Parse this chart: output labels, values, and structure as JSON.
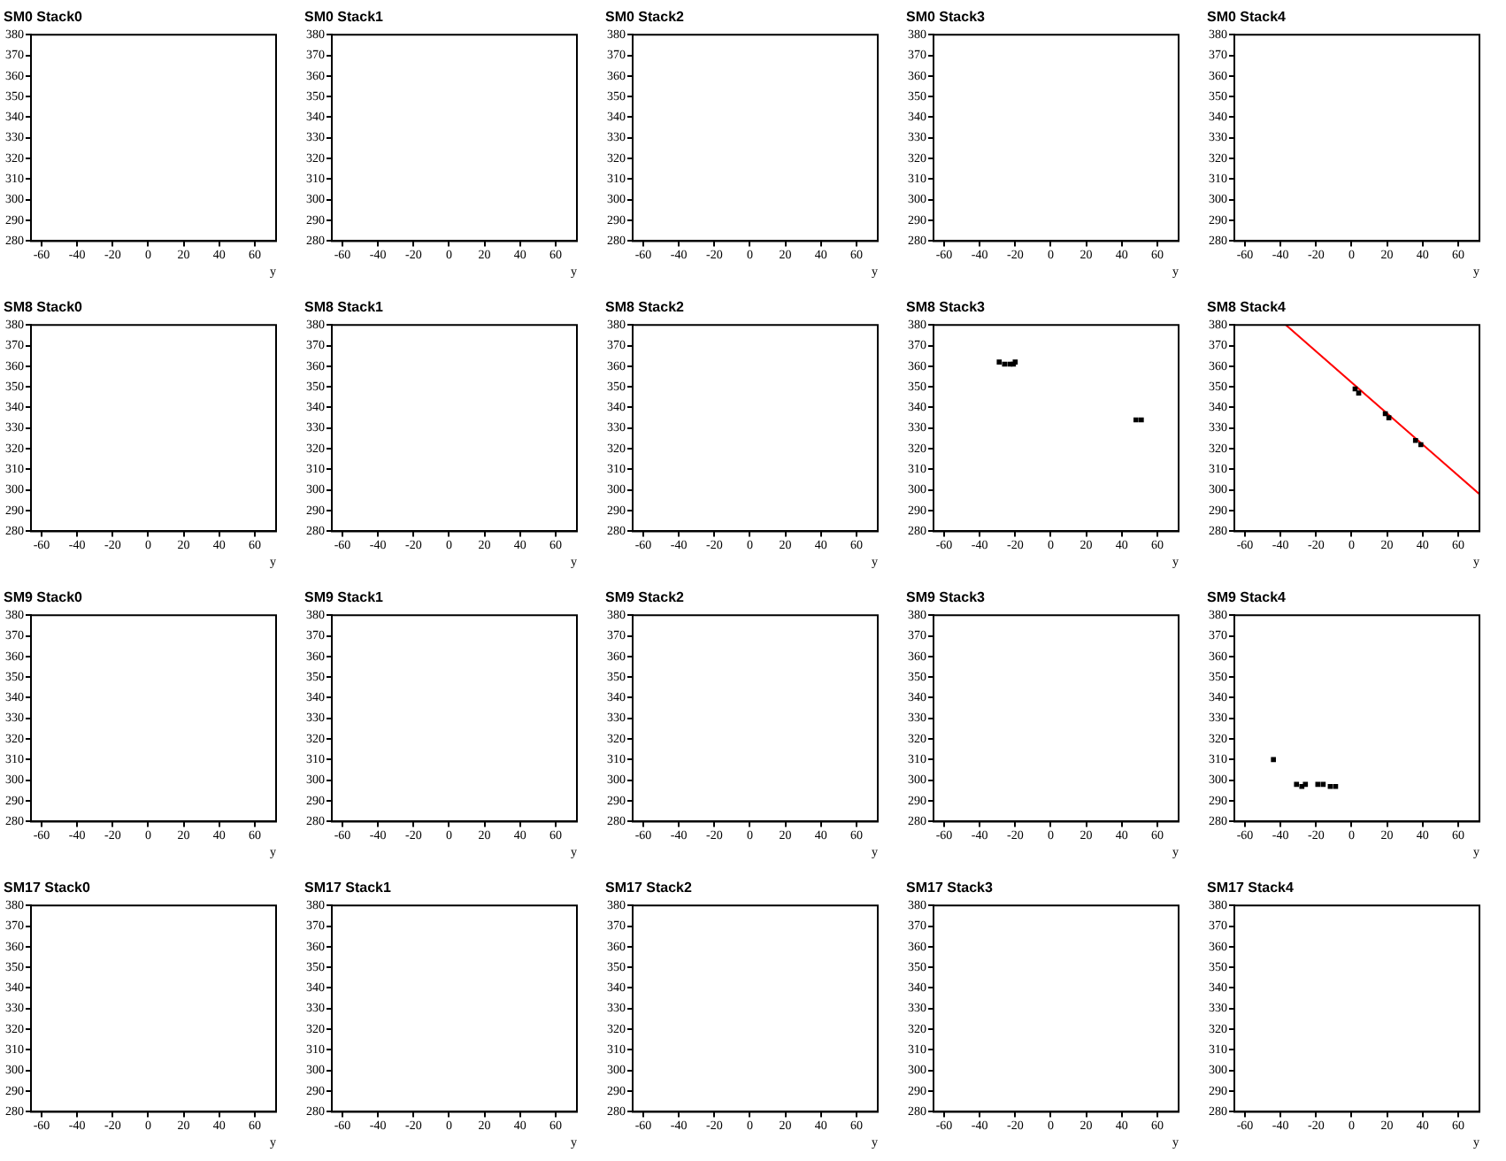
{
  "chart_data": [
    {
      "type": "scatter",
      "title": "SM0 Stack0",
      "xlabel": "y",
      "xlim": [
        -66,
        72
      ],
      "ylim": [
        280,
        380
      ],
      "xticks": [
        -60,
        -40,
        -20,
        0,
        20,
        40,
        60
      ],
      "yticks": [
        280,
        290,
        300,
        310,
        320,
        330,
        340,
        350,
        360,
        370,
        380
      ],
      "grid": false,
      "legend": false
    },
    {
      "type": "scatter",
      "title": "SM0 Stack1",
      "xlabel": "y",
      "xlim": [
        -66,
        72
      ],
      "ylim": [
        280,
        380
      ],
      "xticks": [
        -60,
        -40,
        -20,
        0,
        20,
        40,
        60
      ],
      "yticks": [
        280,
        290,
        300,
        310,
        320,
        330,
        340,
        350,
        360,
        370,
        380
      ],
      "grid": false,
      "legend": false
    },
    {
      "type": "scatter",
      "title": "SM0 Stack2",
      "xlabel": "y",
      "xlim": [
        -66,
        72
      ],
      "ylim": [
        280,
        380
      ],
      "xticks": [
        -60,
        -40,
        -20,
        0,
        20,
        40,
        60
      ],
      "yticks": [
        280,
        290,
        300,
        310,
        320,
        330,
        340,
        350,
        360,
        370,
        380
      ],
      "grid": false,
      "legend": false
    },
    {
      "type": "scatter",
      "title": "SM0 Stack3",
      "xlabel": "y",
      "xlim": [
        -66,
        72
      ],
      "ylim": [
        280,
        380
      ],
      "xticks": [
        -60,
        -40,
        -20,
        0,
        20,
        40,
        60
      ],
      "yticks": [
        280,
        290,
        300,
        310,
        320,
        330,
        340,
        350,
        360,
        370,
        380
      ],
      "grid": false,
      "legend": false
    },
    {
      "type": "scatter",
      "title": "SM0 Stack4",
      "xlabel": "y",
      "xlim": [
        -66,
        72
      ],
      "ylim": [
        280,
        380
      ],
      "xticks": [
        -60,
        -40,
        -20,
        0,
        20,
        40,
        60
      ],
      "yticks": [
        280,
        290,
        300,
        310,
        320,
        330,
        340,
        350,
        360,
        370,
        380
      ],
      "grid": false,
      "legend": false
    },
    {
      "type": "scatter",
      "title": "SM8 Stack0",
      "xlabel": "y",
      "xlim": [
        -66,
        72
      ],
      "ylim": [
        280,
        380
      ],
      "xticks": [
        -60,
        -40,
        -20,
        0,
        20,
        40,
        60
      ],
      "yticks": [
        280,
        290,
        300,
        310,
        320,
        330,
        340,
        350,
        360,
        370,
        380
      ],
      "grid": false,
      "legend": false
    },
    {
      "type": "scatter",
      "title": "SM8 Stack1",
      "xlabel": "y",
      "xlim": [
        -66,
        72
      ],
      "ylim": [
        280,
        380
      ],
      "xticks": [
        -60,
        -40,
        -20,
        0,
        20,
        40,
        60
      ],
      "yticks": [
        280,
        290,
        300,
        310,
        320,
        330,
        340,
        350,
        360,
        370,
        380
      ],
      "grid": false,
      "legend": false
    },
    {
      "type": "scatter",
      "title": "SM8 Stack2",
      "xlabel": "y",
      "xlim": [
        -66,
        72
      ],
      "ylim": [
        280,
        380
      ],
      "xticks": [
        -60,
        -40,
        -20,
        0,
        20,
        40,
        60
      ],
      "yticks": [
        280,
        290,
        300,
        310,
        320,
        330,
        340,
        350,
        360,
        370,
        380
      ],
      "grid": false,
      "legend": false
    },
    {
      "type": "scatter",
      "title": "SM8 Stack3",
      "xlabel": "y",
      "xlim": [
        -66,
        72
      ],
      "ylim": [
        280,
        380
      ],
      "xticks": [
        -60,
        -40,
        -20,
        0,
        20,
        40,
        60
      ],
      "yticks": [
        280,
        290,
        300,
        310,
        320,
        330,
        340,
        350,
        360,
        370,
        380
      ],
      "grid": false,
      "legend": false,
      "marker": "square",
      "series": [
        {
          "color": "#000000",
          "x": [
            -29,
            -26,
            -23,
            -21,
            -20,
            48,
            51
          ],
          "values": [
            362,
            361,
            361,
            361,
            362,
            334,
            334
          ]
        }
      ]
    },
    {
      "type": "scatter",
      "title": "SM8 Stack4",
      "xlabel": "y",
      "xlim": [
        -66,
        72
      ],
      "ylim": [
        280,
        380
      ],
      "xticks": [
        -60,
        -40,
        -20,
        0,
        20,
        40,
        60
      ],
      "yticks": [
        280,
        290,
        300,
        310,
        320,
        330,
        340,
        350,
        360,
        370,
        380
      ],
      "grid": false,
      "legend": false,
      "marker": "square",
      "series": [
        {
          "color": "#000000",
          "x": [
            2,
            4,
            19,
            21,
            36,
            39
          ],
          "values": [
            349,
            347,
            337,
            335,
            324,
            322
          ]
        },
        {
          "type": "line",
          "color": "#ff0000",
          "marker": "none",
          "x": [
            -37,
            72
          ],
          "values": [
            380,
            298
          ]
        }
      ]
    },
    {
      "type": "scatter",
      "title": "SM9 Stack0",
      "xlabel": "y",
      "xlim": [
        -66,
        72
      ],
      "ylim": [
        280,
        380
      ],
      "xticks": [
        -60,
        -40,
        -20,
        0,
        20,
        40,
        60
      ],
      "yticks": [
        280,
        290,
        300,
        310,
        320,
        330,
        340,
        350,
        360,
        370,
        380
      ],
      "grid": false,
      "legend": false
    },
    {
      "type": "scatter",
      "title": "SM9 Stack1",
      "xlabel": "y",
      "xlim": [
        -66,
        72
      ],
      "ylim": [
        280,
        380
      ],
      "xticks": [
        -60,
        -40,
        -20,
        0,
        20,
        40,
        60
      ],
      "yticks": [
        280,
        290,
        300,
        310,
        320,
        330,
        340,
        350,
        360,
        370,
        380
      ],
      "grid": false,
      "legend": false
    },
    {
      "type": "scatter",
      "title": "SM9 Stack2",
      "xlabel": "y",
      "xlim": [
        -66,
        72
      ],
      "ylim": [
        280,
        380
      ],
      "xticks": [
        -60,
        -40,
        -20,
        0,
        20,
        40,
        60
      ],
      "yticks": [
        280,
        290,
        300,
        310,
        320,
        330,
        340,
        350,
        360,
        370,
        380
      ],
      "grid": false,
      "legend": false
    },
    {
      "type": "scatter",
      "title": "SM9 Stack3",
      "xlabel": "y",
      "xlim": [
        -66,
        72
      ],
      "ylim": [
        280,
        380
      ],
      "xticks": [
        -60,
        -40,
        -20,
        0,
        20,
        40,
        60
      ],
      "yticks": [
        280,
        290,
        300,
        310,
        320,
        330,
        340,
        350,
        360,
        370,
        380
      ],
      "grid": false,
      "legend": false
    },
    {
      "type": "scatter",
      "title": "SM9 Stack4",
      "xlabel": "y",
      "xlim": [
        -66,
        72
      ],
      "ylim": [
        280,
        380
      ],
      "xticks": [
        -60,
        -40,
        -20,
        0,
        20,
        40,
        60
      ],
      "yticks": [
        280,
        290,
        300,
        310,
        320,
        330,
        340,
        350,
        360,
        370,
        380
      ],
      "grid": false,
      "legend": false,
      "marker": "square",
      "series": [
        {
          "color": "#000000",
          "x": [
            -44,
            -31,
            -28,
            -26,
            -19,
            -16,
            -12,
            -9
          ],
          "values": [
            310,
            298,
            297,
            298,
            298,
            298,
            297,
            297
          ]
        }
      ]
    },
    {
      "type": "scatter",
      "title": "SM17 Stack0",
      "xlabel": "y",
      "xlim": [
        -66,
        72
      ],
      "ylim": [
        280,
        380
      ],
      "xticks": [
        -60,
        -40,
        -20,
        0,
        20,
        40,
        60
      ],
      "yticks": [
        280,
        290,
        300,
        310,
        320,
        330,
        340,
        350,
        360,
        370,
        380
      ],
      "grid": false,
      "legend": false
    },
    {
      "type": "scatter",
      "title": "SM17 Stack1",
      "xlabel": "y",
      "xlim": [
        -66,
        72
      ],
      "ylim": [
        280,
        380
      ],
      "xticks": [
        -60,
        -40,
        -20,
        0,
        20,
        40,
        60
      ],
      "yticks": [
        280,
        290,
        300,
        310,
        320,
        330,
        340,
        350,
        360,
        370,
        380
      ],
      "grid": false,
      "legend": false
    },
    {
      "type": "scatter",
      "title": "SM17 Stack2",
      "xlabel": "y",
      "xlim": [
        -66,
        72
      ],
      "ylim": [
        280,
        380
      ],
      "xticks": [
        -60,
        -40,
        -20,
        0,
        20,
        40,
        60
      ],
      "yticks": [
        280,
        290,
        300,
        310,
        320,
        330,
        340,
        350,
        360,
        370,
        380
      ],
      "grid": false,
      "legend": false
    },
    {
      "type": "scatter",
      "title": "SM17 Stack3",
      "xlabel": "y",
      "xlim": [
        -66,
        72
      ],
      "ylim": [
        280,
        380
      ],
      "xticks": [
        -60,
        -40,
        -20,
        0,
        20,
        40,
        60
      ],
      "yticks": [
        280,
        290,
        300,
        310,
        320,
        330,
        340,
        350,
        360,
        370,
        380
      ],
      "grid": false,
      "legend": false
    },
    {
      "type": "scatter",
      "title": "SM17 Stack4",
      "xlabel": "y",
      "xlim": [
        -66,
        72
      ],
      "ylim": [
        280,
        380
      ],
      "xticks": [
        -60,
        -40,
        -20,
        0,
        20,
        40,
        60
      ],
      "yticks": [
        280,
        290,
        300,
        310,
        320,
        330,
        340,
        350,
        360,
        370,
        380
      ],
      "grid": false,
      "legend": false
    }
  ]
}
